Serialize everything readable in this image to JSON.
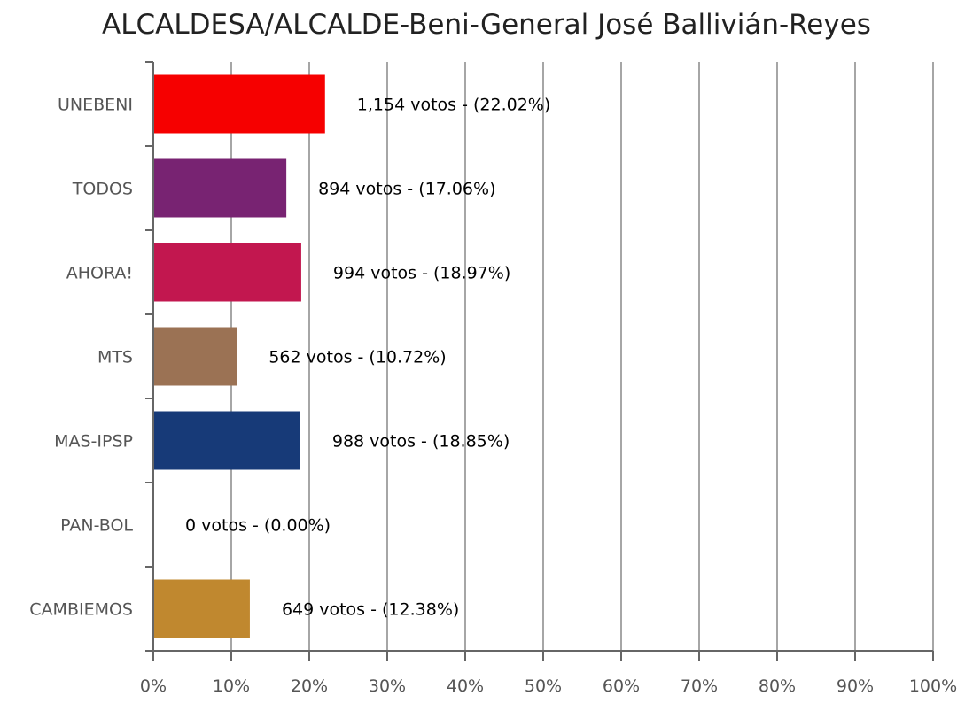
{
  "chart_data": {
    "type": "bar",
    "orientation": "horizontal",
    "title": "ALCALDESA/ALCALDE-Beni-General José Ballivián-Reyes",
    "xlabel": "",
    "ylabel": "",
    "xlim": [
      0,
      100
    ],
    "grid": true,
    "legend": "none",
    "categories": [
      "UNEBENI",
      "TODOS",
      "AHORA!",
      "MTS",
      "MAS-IPSP",
      "PAN-BOL",
      "CAMBIEMOS"
    ],
    "values": [
      22.02,
      17.06,
      18.97,
      10.72,
      18.85,
      0.0,
      12.38
    ],
    "votes": [
      1154,
      894,
      994,
      562,
      988,
      0,
      649
    ],
    "data_labels": [
      "1,154 votos - (22.02%)",
      "894 votos - (17.06%)",
      "994 votos - (18.97%)",
      "562 votos - (10.72%)",
      "988 votos - (18.85%)",
      "0 votos - (0.00%)",
      "649 votos - (12.38%)"
    ],
    "colors": [
      "#f60000",
      "#782372",
      "#c2174f",
      "#9b7254",
      "#173a78",
      "#ffffff",
      "#c0882f"
    ],
    "x_ticks": [
      "0%",
      "10%",
      "20%",
      "30%",
      "40%",
      "50%",
      "60%",
      "70%",
      "80%",
      "90%",
      "100%"
    ]
  }
}
